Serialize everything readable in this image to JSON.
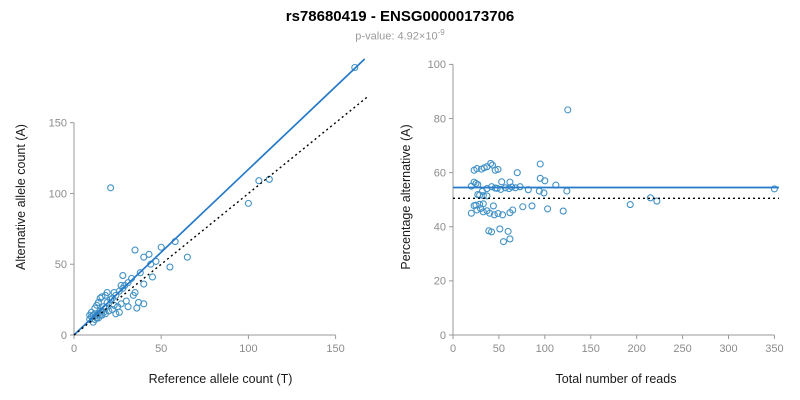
{
  "header": {
    "title": "rs78680419 - ENSG00000173706",
    "pvalue_prefix": "p-value: 4.92×10",
    "pvalue_exponent": "-9"
  },
  "chart_data": [
    {
      "type": "scatter",
      "xlabel": "Reference allele count (T)",
      "ylabel": "Alternative allele count (A)",
      "xlim": [
        0,
        168
      ],
      "ylim": [
        0,
        195
      ],
      "xticks": [
        0,
        50,
        100,
        150
      ],
      "yticks": [
        0,
        50,
        100,
        150
      ],
      "point_color": "#4292c6",
      "points": [
        [
          9,
          11
        ],
        [
          10,
          13
        ],
        [
          11,
          9
        ],
        [
          12,
          15
        ],
        [
          13,
          12
        ],
        [
          10,
          16
        ],
        [
          14,
          12
        ],
        [
          15,
          17
        ],
        [
          12,
          19
        ],
        [
          16,
          14
        ],
        [
          17,
          20
        ],
        [
          13,
          21
        ],
        [
          18,
          15
        ],
        [
          19,
          23
        ],
        [
          20,
          17
        ],
        [
          14,
          23
        ],
        [
          21,
          25
        ],
        [
          22,
          18
        ],
        [
          15,
          26
        ],
        [
          23,
          21
        ],
        [
          24,
          28
        ],
        [
          16,
          27
        ],
        [
          25,
          20
        ],
        [
          26,
          31
        ],
        [
          18,
          28
        ],
        [
          27,
          22
        ],
        [
          28,
          33
        ],
        [
          19,
          30
        ],
        [
          30,
          24
        ],
        [
          31,
          37
        ],
        [
          36,
          19
        ],
        [
          40,
          22
        ],
        [
          24,
          15
        ],
        [
          26,
          16
        ],
        [
          33,
          40
        ],
        [
          35,
          30
        ],
        [
          38,
          44
        ],
        [
          40,
          36
        ],
        [
          28,
          42
        ],
        [
          43,
          57
        ],
        [
          35,
          60
        ],
        [
          45,
          41
        ],
        [
          50,
          62
        ],
        [
          40,
          55
        ],
        [
          55,
          48
        ],
        [
          65,
          55
        ],
        [
          58,
          66
        ],
        [
          47,
          52
        ],
        [
          21,
          104
        ],
        [
          100,
          93
        ],
        [
          106,
          109
        ],
        [
          112,
          110
        ],
        [
          161,
          189
        ],
        [
          12,
          11
        ],
        [
          13,
          14
        ],
        [
          14,
          15
        ],
        [
          15,
          14
        ],
        [
          16,
          17
        ],
        [
          17,
          16
        ],
        [
          11,
          14
        ],
        [
          18,
          19
        ],
        [
          22,
          26
        ],
        [
          29,
          35
        ],
        [
          34,
          28
        ],
        [
          44,
          50
        ],
        [
          37,
          23
        ],
        [
          31,
          20
        ],
        [
          27,
          35
        ],
        [
          23,
          30
        ],
        [
          9,
          14
        ]
      ],
      "lines": [
        {
          "type": "solid",
          "color": "#2579c9",
          "slope": 1.17,
          "intercept": 0
        },
        {
          "type": "dotted",
          "color": "#000000",
          "slope": 1,
          "intercept": 0
        }
      ]
    },
    {
      "type": "scatter",
      "xlabel": "Total number of reads",
      "ylabel": "Percentage alternative (A)",
      "xlim": [
        0,
        355
      ],
      "ylim": [
        0,
        102
      ],
      "xticks": [
        0,
        50,
        100,
        150,
        200,
        250,
        300,
        350
      ],
      "yticks": [
        0,
        20,
        40,
        60,
        80,
        100
      ],
      "point_color": "#4292c6",
      "points": [
        [
          20,
          55
        ],
        [
          23,
          56.5
        ],
        [
          20,
          45
        ],
        [
          27,
          55.6
        ],
        [
          25,
          48
        ],
        [
          26,
          61.5
        ],
        [
          26,
          46.2
        ],
        [
          32,
          53.1
        ],
        [
          31,
          61.3
        ],
        [
          30,
          46.7
        ],
        [
          37,
          54.1
        ],
        [
          34,
          61.8
        ],
        [
          33,
          45.5
        ],
        [
          42,
          54.8
        ],
        [
          37,
          45.9
        ],
        [
          37,
          62.2
        ],
        [
          46,
          54.3
        ],
        [
          40,
          45
        ],
        [
          41,
          63.4
        ],
        [
          44,
          47.7
        ],
        [
          52,
          53.8
        ],
        [
          43,
          62.8
        ],
        [
          45,
          44.4
        ],
        [
          57,
          54.4
        ],
        [
          46,
          60.9
        ],
        [
          49,
          44.9
        ],
        [
          61,
          54.1
        ],
        [
          49,
          61.2
        ],
        [
          54,
          44.4
        ],
        [
          68,
          54.4
        ],
        [
          55,
          34.5
        ],
        [
          62,
          35.5
        ],
        [
          39,
          38.5
        ],
        [
          42,
          38.1
        ],
        [
          73,
          54.8
        ],
        [
          65,
          46.2
        ],
        [
          82,
          53.7
        ],
        [
          76,
          47.4
        ],
        [
          70,
          60
        ],
        [
          100,
          57
        ],
        [
          95,
          63.2
        ],
        [
          86,
          47.7
        ],
        [
          112,
          55.4
        ],
        [
          95,
          57.9
        ],
        [
          103,
          46.6
        ],
        [
          120,
          45.8
        ],
        [
          124,
          53.2
        ],
        [
          99,
          52.5
        ],
        [
          125,
          83.2
        ],
        [
          193,
          48.2
        ],
        [
          215,
          50.7
        ],
        [
          222,
          49.5
        ],
        [
          350,
          54
        ],
        [
          23,
          47.8
        ],
        [
          27,
          51.9
        ],
        [
          29,
          51.7
        ],
        [
          29,
          48.3
        ],
        [
          33,
          51.5
        ],
        [
          33,
          48.5
        ],
        [
          25,
          56
        ],
        [
          37,
          51.4
        ],
        [
          48,
          54.2
        ],
        [
          64,
          54.7
        ],
        [
          62,
          45.2
        ],
        [
          94,
          53.2
        ],
        [
          60,
          38.3
        ],
        [
          51,
          39.2
        ],
        [
          62,
          56.5
        ],
        [
          53,
          56.6
        ],
        [
          23,
          60.9
        ]
      ],
      "lines": [
        {
          "type": "solid",
          "color": "#2579c9",
          "y": 54.5
        },
        {
          "type": "dotted",
          "color": "#000000",
          "y": 50.5
        }
      ]
    }
  ]
}
